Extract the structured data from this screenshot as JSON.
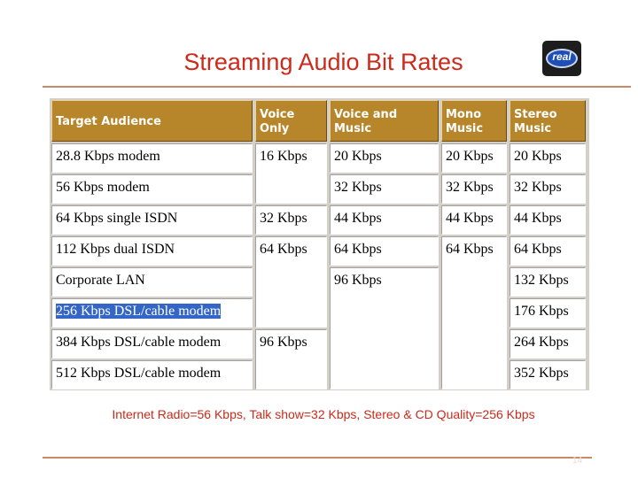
{
  "slide": {
    "title": "Streaming Audio Bit Rates",
    "logo_text": "real",
    "footnote": "Internet Radio=56 Kbps, Talk show=32 Kbps, Stereo & CD Quality=256 Kbps",
    "page_number": "14"
  },
  "table": {
    "headers": [
      "Target Audience",
      "Voice Only",
      "Voice and Music",
      "Mono Music",
      "Stereo Music"
    ],
    "audience": [
      "28.8 Kbps modem",
      "56 Kbps modem",
      "64 Kbps single ISDN",
      "112 Kbps dual ISDN",
      "Corporate LAN",
      "256 Kbps DSL/cable modem",
      "384 Kbps DSL/cable modem",
      "512 Kbps DSL/cable modem"
    ],
    "voice_only": [
      "16 Kbps",
      "32 Kbps",
      "64 Kbps",
      "96 Kbps"
    ],
    "voice_music": [
      "20 Kbps",
      "32 Kbps",
      "44 Kbps",
      "64 Kbps",
      "96 Kbps"
    ],
    "mono_music": [
      "20 Kbps",
      "32 Kbps",
      "44 Kbps",
      "64 Kbps"
    ],
    "stereo_music": [
      "20 Kbps",
      "32 Kbps",
      "44 Kbps",
      "64 Kbps",
      "132 Kbps",
      "176 Kbps",
      "264 Kbps",
      "352 Kbps"
    ],
    "selected_row": 5
  },
  "colors": {
    "title": "#cc2a1a",
    "header_bg": "#b8862a",
    "selection": "#3466c8",
    "rule": "#c98a6a"
  }
}
